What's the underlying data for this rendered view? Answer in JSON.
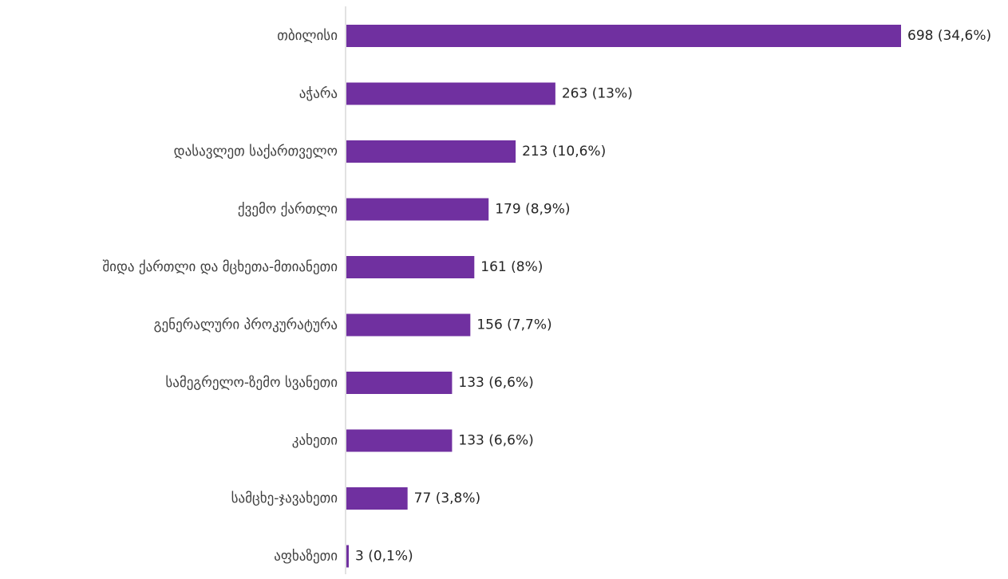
{
  "chart_data": {
    "type": "bar",
    "orientation": "horizontal",
    "categories": [
      "თბილისი",
      "აჭარა",
      "დასავლეთ საქართველო",
      "ქვემო ქართლი",
      "შიდა ქართლი და მცხეთა-მთიანეთი",
      "გენერალური პროკურატურა",
      "სამეგრელო-ზემო სვანეთი",
      "კახეთი",
      "სამცხე-ჯავახეთი",
      "აფხაზეთი"
    ],
    "values": [
      698,
      263,
      213,
      179,
      161,
      156,
      133,
      133,
      77,
      3
    ],
    "data_labels": [
      "698 (34,6%)",
      "263 (13%)",
      "213 (10,6%)",
      "179 (8,9%)",
      "161 (8%)",
      "156 (7,7%)",
      "133 (6,6%)",
      "133 (6,6%)",
      "77 (3,8%)",
      "3 (0,1%)"
    ],
    "xlim": [
      0,
      698
    ],
    "grid": false,
    "legend": "none",
    "colors": {
      "bar": "#7030A0",
      "axis": "#d9d9d9",
      "label_text": "#404040",
      "value_text": "#262626"
    }
  }
}
